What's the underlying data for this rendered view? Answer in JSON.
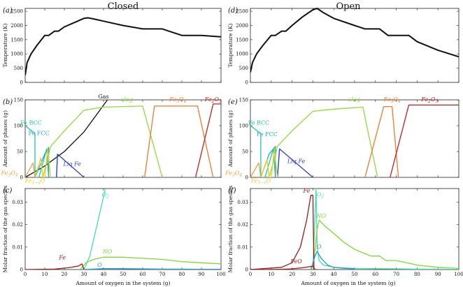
{
  "columns": [
    {
      "title": "Closed",
      "xlabel": "Amount of oxygen in the system (g)"
    },
    {
      "title": "Open",
      "xlabel": "Amount of oxygen in the system (g)"
    }
  ],
  "colors": {
    "temperature": "#111111",
    "gas": "#111111",
    "slag": "#8fdc3c",
    "fe3o4": "#f07a2a",
    "fe2o3": "#c22020",
    "fe_bcc": "#20c8a0",
    "fe_fcc": "#20a8d0",
    "liq_fe": "#3040c8",
    "fe1xo": "#e8d020",
    "fe3o4_low": "#f0a040",
    "o2": "#40e0b0",
    "no": "#80d830",
    "fe_gas": "#a01818",
    "o_gas": "#20a0d8",
    "feo_gas": "#a01818"
  },
  "chart_data": [
    {
      "panel": "a",
      "column": "Closed",
      "type": "line",
      "letter": "(a)",
      "ylabel": "Temperature (K)",
      "xlim": [
        0,
        100
      ],
      "ylim": [
        0,
        2600
      ],
      "xticks": [
        0,
        10,
        20,
        30,
        40,
        50,
        60,
        70,
        80,
        90,
        100
      ],
      "yticks": [
        0,
        500,
        1000,
        1500,
        2000,
        2500
      ],
      "show_xtick_labels": false,
      "series": [
        {
          "name": "Temperature",
          "color_key": "temperature",
          "x": [
            0,
            1,
            3,
            6,
            10,
            12,
            15,
            17,
            20,
            25,
            30,
            32,
            35,
            40,
            50,
            60,
            62,
            70,
            80,
            90,
            100
          ],
          "y": [
            250,
            700,
            1000,
            1300,
            1650,
            1650,
            1800,
            1800,
            1950,
            2100,
            2250,
            2270,
            2230,
            2150,
            2000,
            1880,
            1880,
            1880,
            1650,
            1650,
            1600
          ]
        }
      ],
      "annotations": []
    },
    {
      "panel": "b",
      "column": "Closed",
      "type": "line",
      "letter": "(b)",
      "ylabel": "Amount of phases (g)",
      "xlim": [
        0,
        100
      ],
      "ylim": [
        0,
        150
      ],
      "xticks": [
        0,
        10,
        20,
        30,
        40,
        50,
        60,
        70,
        80,
        90,
        100
      ],
      "yticks": [
        0,
        50,
        100,
        150
      ],
      "show_xtick_labels": false,
      "series": [
        {
          "name": "Gas",
          "color_key": "gas",
          "x": [
            0,
            10,
            20,
            30,
            42
          ],
          "y": [
            0,
            22,
            50,
            88,
            150
          ]
        },
        {
          "name": "slag",
          "color_key": "slag",
          "x": [
            9,
            13,
            20,
            30,
            40,
            60,
            70,
            70.5
          ],
          "y": [
            0,
            60,
            90,
            130,
            136,
            138,
            0,
            0
          ]
        },
        {
          "name": "Fe3O4",
          "color_key": "fe3o4",
          "x": [
            61,
            66,
            88,
            96
          ],
          "y": [
            0,
            138,
            138,
            0
          ]
        },
        {
          "name": "Fe2O3",
          "color_key": "fe2o3",
          "x": [
            87,
            96,
            100
          ],
          "y": [
            0,
            142,
            142
          ]
        },
        {
          "name": "Fe BCC",
          "color_key": "fe_bcc",
          "x": [
            0,
            5,
            5,
            7,
            11,
            12
          ],
          "y": [
            100,
            85,
            0,
            0,
            55,
            0
          ]
        },
        {
          "name": "Fe FCC",
          "color_key": "fe_fcc",
          "x": [
            5,
            10,
            12,
            12,
            16,
            16.5
          ],
          "y": [
            0,
            45,
            58,
            0,
            0,
            45
          ]
        },
        {
          "name": "Liq Fe",
          "color_key": "liq_fe",
          "x": [
            16,
            16.5,
            30
          ],
          "y": [
            0,
            45,
            0
          ]
        },
        {
          "name": "Fe1-xO",
          "color_key": "fe1xo",
          "x": [
            5,
            8,
            9,
            10,
            11.5,
            13
          ],
          "y": [
            0,
            38,
            0,
            0,
            55,
            0
          ]
        },
        {
          "name": "Fe3O4 low",
          "color_key": "fe3o4_low",
          "x": [
            0,
            4,
            5
          ],
          "y": [
            0,
            28,
            0
          ]
        }
      ],
      "annotations": [
        {
          "text": "Gas",
          "x": 40,
          "y": 153,
          "color_key": "gas",
          "italic": false
        },
        {
          "text": "slag",
          "x": 52,
          "y": 147,
          "color_key": "slag",
          "italic": true
        },
        {
          "text": "Fe3O4",
          "x": 78,
          "y": 147,
          "color_key": "fe3o4",
          "italic": true
        },
        {
          "text": "Fe2O3",
          "x": 96,
          "y": 147,
          "color_key": "fe2o3",
          "italic": true
        },
        {
          "text": "Fe BCC",
          "x": 3,
          "y": 102,
          "color_key": "fe_bcc",
          "italic": false
        },
        {
          "text": "Fe FCC",
          "x": 7,
          "y": 82,
          "color_key": "fe_fcc",
          "italic": false
        },
        {
          "text": "Liq Fe",
          "x": 24,
          "y": 22,
          "color_key": "liq_fe",
          "italic": true
        },
        {
          "text": "Fe3O4",
          "x": -8,
          "y": 5,
          "color_key": "fe3o4_low",
          "italic": true
        },
        {
          "text": "Fe1-xO",
          "x": 5,
          "y": -10,
          "color_key": "fe1xo",
          "italic": true
        }
      ]
    },
    {
      "panel": "c",
      "column": "Closed",
      "type": "line",
      "letter": "(c)",
      "ylabel": "Molar fraction of the gas species",
      "xlim": [
        0,
        100
      ],
      "ylim": [
        0,
        0.036
      ],
      "xticks": [
        0,
        10,
        20,
        30,
        40,
        50,
        60,
        70,
        80,
        90,
        100
      ],
      "yticks": [
        0,
        0.01,
        0.02,
        0.03
      ],
      "show_xtick_labels": true,
      "series": [
        {
          "name": "O2",
          "color_key": "o2",
          "x": [
            30,
            33,
            41
          ],
          "y": [
            0,
            0.006,
            0.036
          ]
        },
        {
          "name": "NO",
          "color_key": "no",
          "x": [
            28,
            31,
            35,
            40,
            50,
            60,
            70,
            80,
            90,
            100
          ],
          "y": [
            0,
            0.003,
            0.0045,
            0.0055,
            0.0055,
            0.005,
            0.0045,
            0.0035,
            0.003,
            0.0025
          ]
        },
        {
          "name": "Fe",
          "color_key": "fe_gas",
          "x": [
            0,
            15,
            22,
            27,
            29,
            30,
            32
          ],
          "y": [
            0,
            0.0002,
            0.0008,
            0.0015,
            0.0025,
            0.0,
            0
          ]
        },
        {
          "name": "O",
          "color_key": "o_gas",
          "x": [
            30,
            40,
            50,
            60,
            70,
            80,
            90,
            100
          ],
          "y": [
            0,
            0.0004,
            0.0004,
            0.0003,
            0.0002,
            0.0002,
            0.0001,
            0.0001
          ]
        }
      ],
      "annotations": [
        {
          "text": "O2",
          "x": 41,
          "y": 0.0325,
          "color_key": "o2",
          "italic": true
        },
        {
          "text": "NO",
          "x": 42,
          "y": 0.0072,
          "color_key": "no",
          "italic": true
        },
        {
          "text": "Fe",
          "x": 19,
          "y": 0.0045,
          "color_key": "fe_gas",
          "italic": true
        },
        {
          "text": "O",
          "x": 38,
          "y": 0.0012,
          "color_key": "o_gas",
          "italic": true
        }
      ]
    },
    {
      "panel": "d",
      "column": "Open",
      "type": "line",
      "letter": "(d)",
      "ylabel": "Temperature (K)",
      "xlim": [
        0,
        100
      ],
      "ylim": [
        0,
        2600
      ],
      "xticks": [
        0,
        10,
        20,
        30,
        40,
        50,
        60,
        70,
        80,
        90,
        100
      ],
      "yticks": [
        0,
        500,
        1000,
        1500,
        2000,
        2500
      ],
      "show_xtick_labels": false,
      "series": [
        {
          "name": "Temperature",
          "color_key": "temperature",
          "x": [
            0,
            1,
            3,
            6,
            10,
            12,
            15,
            17,
            20,
            25,
            30,
            32,
            35,
            40,
            50,
            55,
            62,
            66,
            70,
            76,
            80,
            90,
            100
          ],
          "y": [
            350,
            700,
            1000,
            1300,
            1650,
            1650,
            1800,
            1800,
            2000,
            2300,
            2550,
            2600,
            2450,
            2250,
            2000,
            1880,
            1880,
            1650,
            1650,
            1650,
            1430,
            1130,
            900
          ]
        }
      ],
      "annotations": []
    },
    {
      "panel": "e",
      "column": "Open",
      "type": "line",
      "letter": "(e)",
      "ylabel": "Amount of phases (g)",
      "xlim": [
        0,
        100
      ],
      "ylim": [
        0,
        150
      ],
      "xticks": [
        0,
        10,
        20,
        30,
        40,
        50,
        60,
        70,
        80,
        90,
        100
      ],
      "yticks": [
        0,
        50,
        100,
        150
      ],
      "show_xtick_labels": false,
      "series": [
        {
          "name": "slag",
          "color_key": "slag",
          "x": [
            9,
            13,
            20,
            30,
            40,
            54,
            61,
            61.5
          ],
          "y": [
            0,
            60,
            90,
            128,
            132,
            136,
            0,
            0
          ]
        },
        {
          "name": "Fe3O4",
          "color_key": "fe3o4",
          "x": [
            55,
            64,
            68,
            71
          ],
          "y": [
            0,
            137,
            137,
            0
          ]
        },
        {
          "name": "Fe2O3",
          "color_key": "fe2o3",
          "x": [
            67,
            76,
            100
          ],
          "y": [
            0,
            140,
            140
          ]
        },
        {
          "name": "Fe BCC",
          "color_key": "fe_bcc",
          "x": [
            0,
            5,
            5,
            7,
            11,
            12
          ],
          "y": [
            100,
            85,
            0,
            0,
            55,
            0
          ]
        },
        {
          "name": "Fe FCC",
          "color_key": "fe_fcc",
          "x": [
            5,
            9,
            12,
            12,
            13,
            14
          ],
          "y": [
            0,
            45,
            60,
            0,
            0,
            55
          ]
        },
        {
          "name": "Liq Fe",
          "color_key": "liq_fe",
          "x": [
            13,
            14,
            30
          ],
          "y": [
            0,
            55,
            0
          ]
        },
        {
          "name": "Fe1-xO",
          "color_key": "fe1xo",
          "x": [
            5,
            8,
            9,
            10,
            11.5,
            13
          ],
          "y": [
            0,
            35,
            0,
            0,
            55,
            0
          ]
        },
        {
          "name": "Fe3O4 low",
          "color_key": "fe3o4_low",
          "x": [
            0,
            4,
            5
          ],
          "y": [
            0,
            28,
            0
          ]
        }
      ],
      "annotations": [
        {
          "text": "slag",
          "x": 50,
          "y": 147,
          "color_key": "slag",
          "italic": true
        },
        {
          "text": "Fe3O4",
          "x": 68,
          "y": 147,
          "color_key": "fe3o4",
          "italic": true
        },
        {
          "text": "Fe2O3",
          "x": 86,
          "y": 147,
          "color_key": "fe2o3",
          "italic": true
        },
        {
          "text": "Fe BCC",
          "x": 4,
          "y": 102,
          "color_key": "fe_bcc",
          "italic": false
        },
        {
          "text": "Fe FCC",
          "x": 8,
          "y": 80,
          "color_key": "fe_fcc",
          "italic": false
        },
        {
          "text": "Liq Fe",
          "x": 22,
          "y": 28,
          "color_key": "liq_fe",
          "italic": true
        },
        {
          "text": "Fe3O4",
          "x": -8,
          "y": 5,
          "color_key": "fe3o4_low",
          "italic": true
        },
        {
          "text": "Fe1-xO",
          "x": 5,
          "y": -10,
          "color_key": "fe1xo",
          "italic": true
        }
      ]
    },
    {
      "panel": "f",
      "column": "Open",
      "type": "line",
      "letter": "(f)",
      "ylabel": "Molar fraction of the gas species",
      "xlim": [
        0,
        100
      ],
      "ylim": [
        0,
        0.036
      ],
      "xticks": [
        0,
        10,
        20,
        30,
        40,
        50,
        60,
        70,
        80,
        90,
        100
      ],
      "yticks": [
        0,
        0.01,
        0.02,
        0.03
      ],
      "show_xtick_labels": true,
      "series": [
        {
          "name": "O2",
          "color_key": "o2",
          "x": [
            30,
            31.5,
            32,
            33,
            35,
            40,
            50,
            60,
            70,
            80,
            90,
            100
          ],
          "y": [
            0,
            0.036,
            0.01,
            0.004,
            0.002,
            0.001,
            0.0005,
            0.0004,
            0.0003,
            0.0002,
            0.0001,
            0.0001
          ]
        },
        {
          "name": "NO",
          "color_key": "no",
          "x": [
            30,
            32,
            33,
            35,
            40,
            45,
            50,
            55,
            58,
            62,
            65,
            70,
            75,
            80,
            90,
            100
          ],
          "y": [
            0,
            0.018,
            0.022,
            0.02,
            0.016,
            0.012,
            0.009,
            0.007,
            0.006,
            0.006,
            0.004,
            0.004,
            0.003,
            0.002,
            0.001,
            0.0005
          ]
        },
        {
          "name": "Fe",
          "color_key": "fe_gas",
          "x": [
            0,
            15,
            20,
            24,
            27,
            29,
            30,
            30.5,
            32
          ],
          "y": [
            0,
            0.001,
            0.003,
            0.01,
            0.022,
            0.033,
            0.033,
            0.0,
            0
          ]
        },
        {
          "name": "O",
          "color_key": "o_gas",
          "x": [
            29,
            31,
            32,
            34,
            37,
            40,
            45,
            50
          ],
          "y": [
            0,
            0.006,
            0.008,
            0.005,
            0.002,
            0.001,
            0.0005,
            0.0003
          ]
        },
        {
          "name": "FeO",
          "color_key": "feo_gas",
          "x": [
            0,
            15,
            20,
            25,
            28,
            30,
            31
          ],
          "y": [
            0,
            0.0001,
            0.0003,
            0.0008,
            0.0012,
            0.0015,
            0
          ]
        }
      ],
      "annotations": [
        {
          "text": "Fe",
          "x": 27,
          "y": 0.0342,
          "color_key": "fe_gas",
          "italic": true
        },
        {
          "text": "O2",
          "x": 33.5,
          "y": 0.0325,
          "color_key": "o2",
          "italic": true
        },
        {
          "text": "NO",
          "x": 34,
          "y": 0.023,
          "color_key": "no",
          "italic": true
        },
        {
          "text": "O",
          "x": 33,
          "y": 0.0093,
          "color_key": "o_gas",
          "italic": true
        },
        {
          "text": "FeO",
          "x": 22,
          "y": 0.0028,
          "color_key": "feo_gas",
          "italic": true
        }
      ]
    }
  ]
}
